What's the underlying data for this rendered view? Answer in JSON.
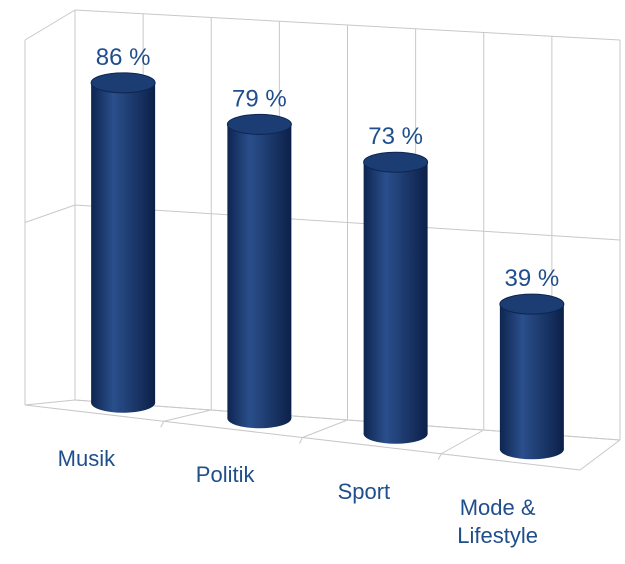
{
  "chart_data": {
    "type": "cylinder",
    "categories": [
      "Musik",
      "Politik",
      "Sport",
      "Mode & Lifestyle"
    ],
    "values": [
      86,
      79,
      73,
      39
    ],
    "value_labels": [
      "86 %",
      "79 %",
      "73 %",
      "39 %"
    ],
    "color": "#1b3d73",
    "ylim": [
      0,
      100
    ],
    "yticks": [
      0,
      50,
      100
    ],
    "grid": true
  }
}
